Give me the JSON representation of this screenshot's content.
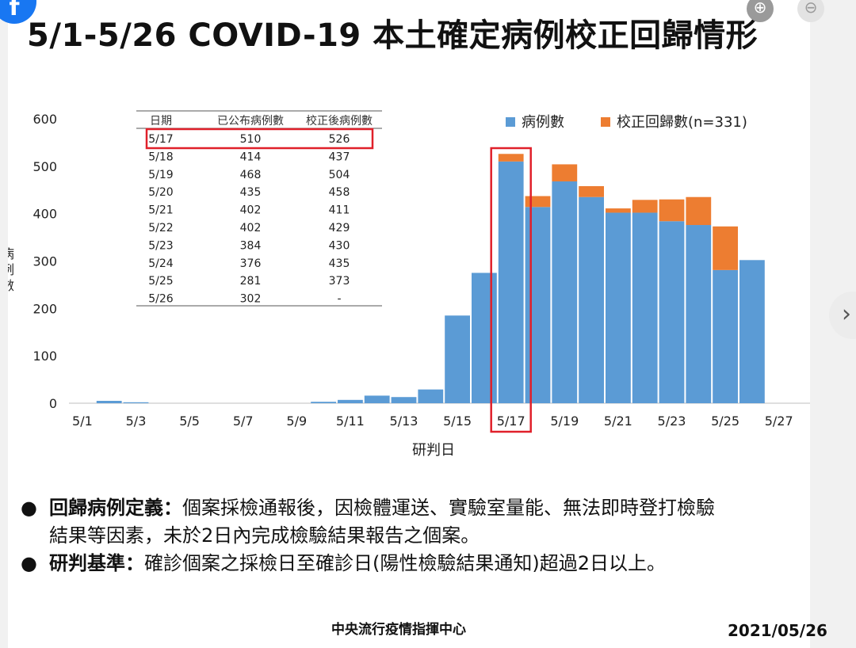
{
  "title": "5/1-5/26 COVID-19 本土確定病例校正回歸情形",
  "chart_data": {
    "type": "bar",
    "stacked": true,
    "x": [
      "5/1",
      "5/2",
      "5/3",
      "5/4",
      "5/5",
      "5/6",
      "5/7",
      "5/8",
      "5/9",
      "5/10",
      "5/11",
      "5/12",
      "5/13",
      "5/14",
      "5/15",
      "5/16",
      "5/17",
      "5/18",
      "5/19",
      "5/20",
      "5/21",
      "5/22",
      "5/23",
      "5/24",
      "5/25",
      "5/26"
    ],
    "xticks": [
      "5/1",
      "5/3",
      "5/5",
      "5/7",
      "5/9",
      "5/11",
      "5/13",
      "5/15",
      "5/17",
      "5/19",
      "5/21",
      "5/23",
      "5/25",
      "5/27"
    ],
    "series": [
      {
        "name": "病例數",
        "color": "#5b9bd5",
        "values": [
          0,
          5,
          2,
          0,
          0,
          0,
          0,
          0,
          0,
          3,
          7,
          16,
          13,
          29,
          185,
          275,
          510,
          414,
          468,
          435,
          402,
          402,
          384,
          376,
          281,
          302
        ]
      },
      {
        "name": "校正回歸數(n=331)",
        "color": "#ed7d31",
        "values": [
          0,
          0,
          0,
          0,
          0,
          0,
          0,
          0,
          0,
          0,
          0,
          0,
          0,
          0,
          0,
          0,
          16,
          23,
          36,
          23,
          9,
          27,
          46,
          59,
          92,
          0
        ]
      }
    ],
    "ylabel": "病例數",
    "xlabel": "研判日",
    "ylim": [
      0,
      600
    ],
    "yticks": [
      0,
      100,
      200,
      300,
      400,
      500,
      600
    ],
    "legend": "top-right",
    "highlight": "5/17",
    "table": {
      "headers": [
        "日期",
        "已公布病例數",
        "校正後病例數"
      ],
      "rows": [
        [
          "5/17",
          "510",
          "526"
        ],
        [
          "5/18",
          "414",
          "437"
        ],
        [
          "5/19",
          "468",
          "504"
        ],
        [
          "5/20",
          "435",
          "458"
        ],
        [
          "5/21",
          "402",
          "411"
        ],
        [
          "5/22",
          "402",
          "429"
        ],
        [
          "5/23",
          "384",
          "430"
        ],
        [
          "5/24",
          "376",
          "435"
        ],
        [
          "5/25",
          "281",
          "373"
        ],
        [
          "5/26",
          "302",
          "-"
        ]
      ],
      "highlight_row": "5/17"
    }
  },
  "bullets": [
    {
      "term": "回歸病例定義：",
      "lines": [
        "個案採檢通報後，因檢體運送、實驗室量能、無法即時登打檢驗",
        "結果等因素，未於2日內完成檢驗結果報告之個案。"
      ]
    },
    {
      "term": "研判基準：",
      "lines": [
        "確診個案之採檢日至確診日(陽性檢驗結果通知)超過2日以上。"
      ]
    }
  ],
  "footer": {
    "org": "中央流行疫情指揮中心",
    "date": "2021/05/26"
  },
  "ui": {
    "fab_icon": "facebook-icon",
    "fab_glyph": "f",
    "zoom_in_icon": "zoom-in-icon",
    "zoom_in_glyph": "⊕",
    "zoom_out_icon": "zoom-out-icon",
    "zoom_out_glyph": "⊖",
    "next_icon": "chevron-right-icon",
    "next_glyph": "›"
  }
}
